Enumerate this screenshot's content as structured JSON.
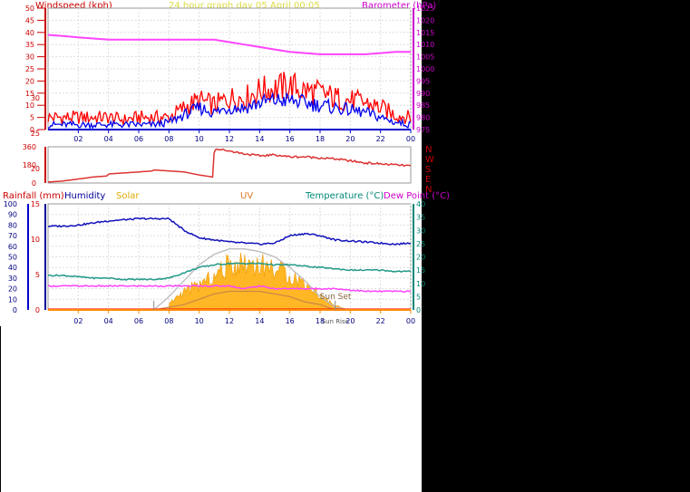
{
  "title": "24 hour graph day   05 April  00:05",
  "colors": {
    "wind_gust": "#ff0000",
    "wind_avg": "#0000ee",
    "barometer": "#ff44ff",
    "direction": "#dd3333",
    "humidity": "#1111bb",
    "temperature": "#229988",
    "dew_point": "#ff44ff",
    "solar_fill": "#ffaa00",
    "uv": "#cc8844",
    "rain": "#ff0000",
    "solar_curve": "#bbbbbb",
    "label_rain": "#cc0000",
    "label_humidity": "#000099",
    "label_solar": "#ddaa00",
    "label_uv": "#dd7722",
    "label_temp": "#008877",
    "label_dew": "#cc00cc",
    "label_dir": "#cc0000"
  },
  "chart_data": [
    {
      "type": "line",
      "name": "wind-barometer",
      "ylabel": "Windspeed (kph)",
      "y2label": "Barometer (hPa)",
      "ylim": [
        0,
        50
      ],
      "y2lim": [
        975,
        1025
      ],
      "yticks": [
        "0",
        "5",
        "10",
        "15",
        "20",
        "25",
        "30",
        "35",
        "40",
        "45",
        "50"
      ],
      "y2ticks": [
        "975",
        "980",
        "985",
        "990",
        "995",
        "1000",
        "1005",
        "1010",
        "1015",
        "1020",
        "1025"
      ],
      "xticks": [
        "02",
        "04",
        "06",
        "08",
        "10",
        "12",
        "14",
        "16",
        "18",
        "20",
        "22",
        "00"
      ],
      "x_hours": [
        0,
        1,
        2,
        3,
        4,
        5,
        6,
        7,
        8,
        9,
        10,
        11,
        12,
        13,
        14,
        15,
        16,
        17,
        18,
        19,
        20,
        21,
        22,
        23,
        24
      ],
      "grid": true,
      "series": [
        {
          "name": "Gust",
          "axis": "left",
          "values": [
            5,
            5,
            5,
            5,
            5,
            4,
            5,
            5,
            5,
            9,
            12,
            10,
            13,
            13,
            16,
            17,
            18,
            16,
            15,
            13,
            12,
            11,
            9,
            6,
            5
          ]
        },
        {
          "name": "Average",
          "axis": "left",
          "values": [
            2,
            2,
            2,
            2,
            2,
            2,
            2,
            2,
            3,
            6,
            9,
            7,
            9,
            9,
            11,
            12,
            12,
            11,
            10,
            9,
            8,
            7,
            5,
            3,
            2
          ]
        },
        {
          "name": "Barometer",
          "axis": "right",
          "values": [
            1014,
            1013.5,
            1013,
            1012.5,
            1012,
            1012,
            1012,
            1012,
            1012,
            1012,
            1012,
            1012,
            1011,
            1010,
            1009,
            1008,
            1007,
            1006.5,
            1006,
            1006,
            1006,
            1006,
            1006.5,
            1007,
            1007
          ]
        }
      ]
    },
    {
      "type": "line",
      "name": "wind-direction",
      "ylim": [
        0,
        360
      ],
      "yticks": [
        "0",
        "180",
        "360"
      ],
      "compass": [
        "N",
        "W",
        "S",
        "E",
        "N"
      ],
      "xticks": [],
      "x_hours": [
        0,
        1,
        2,
        3,
        3.9,
        4.0,
        5,
        6,
        6.9,
        7.0,
        8,
        9,
        10,
        10.9,
        11.0,
        12,
        13,
        14,
        15,
        16,
        17,
        18,
        19,
        20,
        21,
        22,
        23,
        24
      ],
      "grid": false,
      "series": [
        {
          "name": "Direction",
          "values": [
            10,
            20,
            40,
            60,
            70,
            90,
            100,
            110,
            120,
            130,
            120,
            110,
            80,
            60,
            340,
            320,
            290,
            270,
            280,
            260,
            260,
            250,
            240,
            220,
            200,
            190,
            180,
            170
          ]
        }
      ]
    },
    {
      "type": "line",
      "name": "humidity-temperature-solar",
      "legend": [
        "Rainfall (mm)",
        "Humidity",
        "Solar",
        "UV",
        "Temperature (°C)",
        "Dew Point (°C)"
      ],
      "yticks_rain": [
        "0",
        "10",
        "20",
        "30",
        "40",
        "50",
        "60",
        "70",
        "80",
        "90",
        "100"
      ],
      "yticks_left2": [
        "0",
        "5",
        "10",
        "15",
        "20",
        "25",
        "30"
      ],
      "yticks_right": [
        "0",
        "5",
        "10",
        "15",
        "20",
        "25",
        "30",
        "35",
        "40"
      ],
      "xticks": [
        "02",
        "04",
        "06",
        "08",
        "10",
        "12",
        "14",
        "16",
        "18",
        "20",
        "22",
        "00"
      ],
      "ylim_hum": [
        0,
        100
      ],
      "ylim_temp": [
        0,
        40
      ],
      "x_hours": [
        0,
        1,
        2,
        3,
        4,
        5,
        6,
        7,
        8,
        9,
        10,
        11,
        12,
        13,
        14,
        15,
        16,
        17,
        18,
        19,
        20,
        21,
        22,
        23,
        24
      ],
      "grid": true,
      "annotations": [
        {
          "label": "Sun Rise",
          "hour": 7
        },
        {
          "label": "Sun Set",
          "hour": 19
        }
      ],
      "series": [
        {
          "name": "Humidity",
          "values": [
            79,
            79,
            80,
            82,
            84,
            85,
            86,
            86,
            86,
            75,
            68,
            66,
            64,
            63,
            62,
            63,
            70,
            72,
            70,
            66,
            65,
            64,
            63,
            62,
            63
          ]
        },
        {
          "name": "Temperature",
          "values": [
            13,
            13,
            12.5,
            12,
            12,
            11.5,
            11.5,
            11.5,
            12,
            14,
            16,
            17,
            17.5,
            17.5,
            17.5,
            17,
            17,
            16.5,
            16,
            15.5,
            15,
            15,
            15,
            14.5,
            14.5
          ]
        },
        {
          "name": "Dew Point",
          "values": [
            9,
            9,
            9,
            9,
            9,
            9,
            9,
            9,
            9,
            9,
            9,
            9,
            9,
            8,
            9,
            8,
            8,
            8,
            8,
            8,
            7.5,
            7,
            7,
            7,
            7
          ]
        },
        {
          "name": "Solar",
          "values": [
            0,
            0,
            0,
            0,
            0,
            0,
            0,
            0,
            3,
            9,
            12,
            16,
            22,
            23,
            22,
            20,
            17,
            13,
            7,
            2,
            0,
            0,
            0,
            0,
            0
          ]
        },
        {
          "name": "Solar max",
          "values": [
            0,
            0,
            0,
            0,
            0,
            0,
            0,
            0,
            5,
            11,
            17,
            21,
            23,
            23,
            22,
            20,
            16,
            11,
            5,
            1,
            0,
            0,
            0,
            0,
            0
          ]
        },
        {
          "name": "UV",
          "values": [
            0,
            0,
            0,
            0,
            0,
            0,
            0,
            0,
            1,
            2,
            4,
            6,
            7,
            7,
            7,
            6,
            5,
            3,
            2,
            0,
            0,
            0,
            0,
            0,
            0
          ]
        }
      ]
    }
  ]
}
